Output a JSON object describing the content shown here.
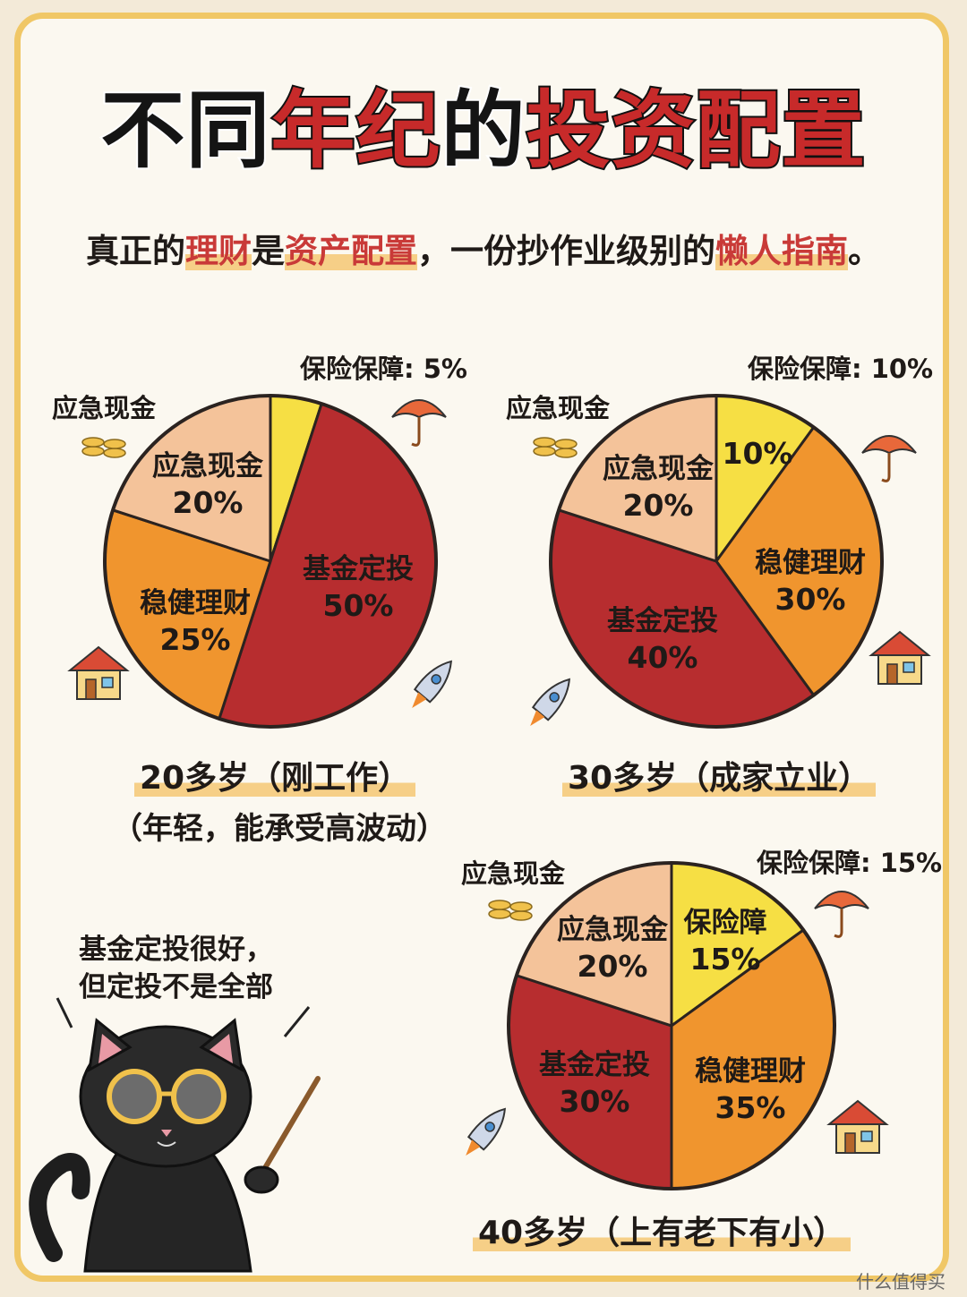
{
  "header": {
    "title_black_1": "不同",
    "title_red_1": "年纪",
    "title_black_2": "的",
    "title_red_2": "投资配置",
    "subtitle_1": "真正的",
    "subtitle_hl_1": "理财",
    "subtitle_2": "是",
    "subtitle_hl_2": "资产配置",
    "subtitle_3": "，一份抄作业级别的",
    "subtitle_hl_3": "懒人指南",
    "subtitle_4": "。"
  },
  "charts": {
    "a": {
      "caption": "20多岁（刚工作）",
      "note": "（年轻，能承受高波动）"
    },
    "b": {
      "caption": "30多岁（成家立业）"
    },
    "c": {
      "caption": "40多岁（上有老下有小）"
    }
  },
  "cat_note": {
    "line1": "基金定投很好，",
    "line2": "但定投不是全部"
  },
  "footer": {
    "label": "什么值得买"
  },
  "colors": {
    "fund": "#b72d2f",
    "steady": "#f0952e",
    "cash": "#f4c39a",
    "insurance": "#f6df44",
    "accent": "#c72a2a",
    "highlight": "#f6cf87",
    "frame": "#f0c766"
  },
  "chart_data": [
    {
      "type": "pie",
      "title": "20多岁（刚工作）",
      "slices": [
        {
          "label": "保险保障",
          "value": 5,
          "color": "#f6df44",
          "callout": "保险保障: 5%"
        },
        {
          "label": "基金定投",
          "value": 50,
          "color": "#b72d2f",
          "inner_text": "基金定投",
          "inner_value": "50%"
        },
        {
          "label": "稳健理财",
          "value": 25,
          "color": "#f0952e",
          "inner_text": "稳健理财",
          "inner_value": "25%"
        },
        {
          "label": "应急现金",
          "value": 20,
          "color": "#f4c39a",
          "inner_text": "应急现金",
          "inner_value": "20%",
          "callout": "应急现金"
        }
      ]
    },
    {
      "type": "pie",
      "title": "30多岁（成家立业）",
      "slices": [
        {
          "label": "保险保障",
          "value": 10,
          "color": "#f6df44",
          "inner_text": "",
          "inner_value": "10%",
          "callout": "保险保障: 10%"
        },
        {
          "label": "稳健理财",
          "value": 30,
          "color": "#f0952e",
          "inner_text": "稳健理财",
          "inner_value": "30%"
        },
        {
          "label": "基金定投",
          "value": 40,
          "color": "#b72d2f",
          "inner_text": "基金定投",
          "inner_value": "40%"
        },
        {
          "label": "应急现金",
          "value": 20,
          "color": "#f4c39a",
          "inner_text": "应急现金",
          "inner_value": "20%",
          "callout": "应急现金"
        }
      ]
    },
    {
      "type": "pie",
      "title": "40多岁（上有老下有小）",
      "slices": [
        {
          "label": "保险保障",
          "value": 15,
          "color": "#f6df44",
          "inner_text": "保险障",
          "inner_value": "15%",
          "callout": "保险保障: 15%"
        },
        {
          "label": "稳健理财",
          "value": 35,
          "color": "#f0952e",
          "inner_text": "稳健理财",
          "inner_value": "35%"
        },
        {
          "label": "基金定投",
          "value": 30,
          "color": "#b72d2f",
          "inner_text": "基金定投",
          "inner_value": "30%"
        },
        {
          "label": "应急现金",
          "value": 20,
          "color": "#f4c39a",
          "inner_text": "应急现金",
          "inner_value": "20%",
          "callout": "应急现金"
        }
      ]
    }
  ]
}
